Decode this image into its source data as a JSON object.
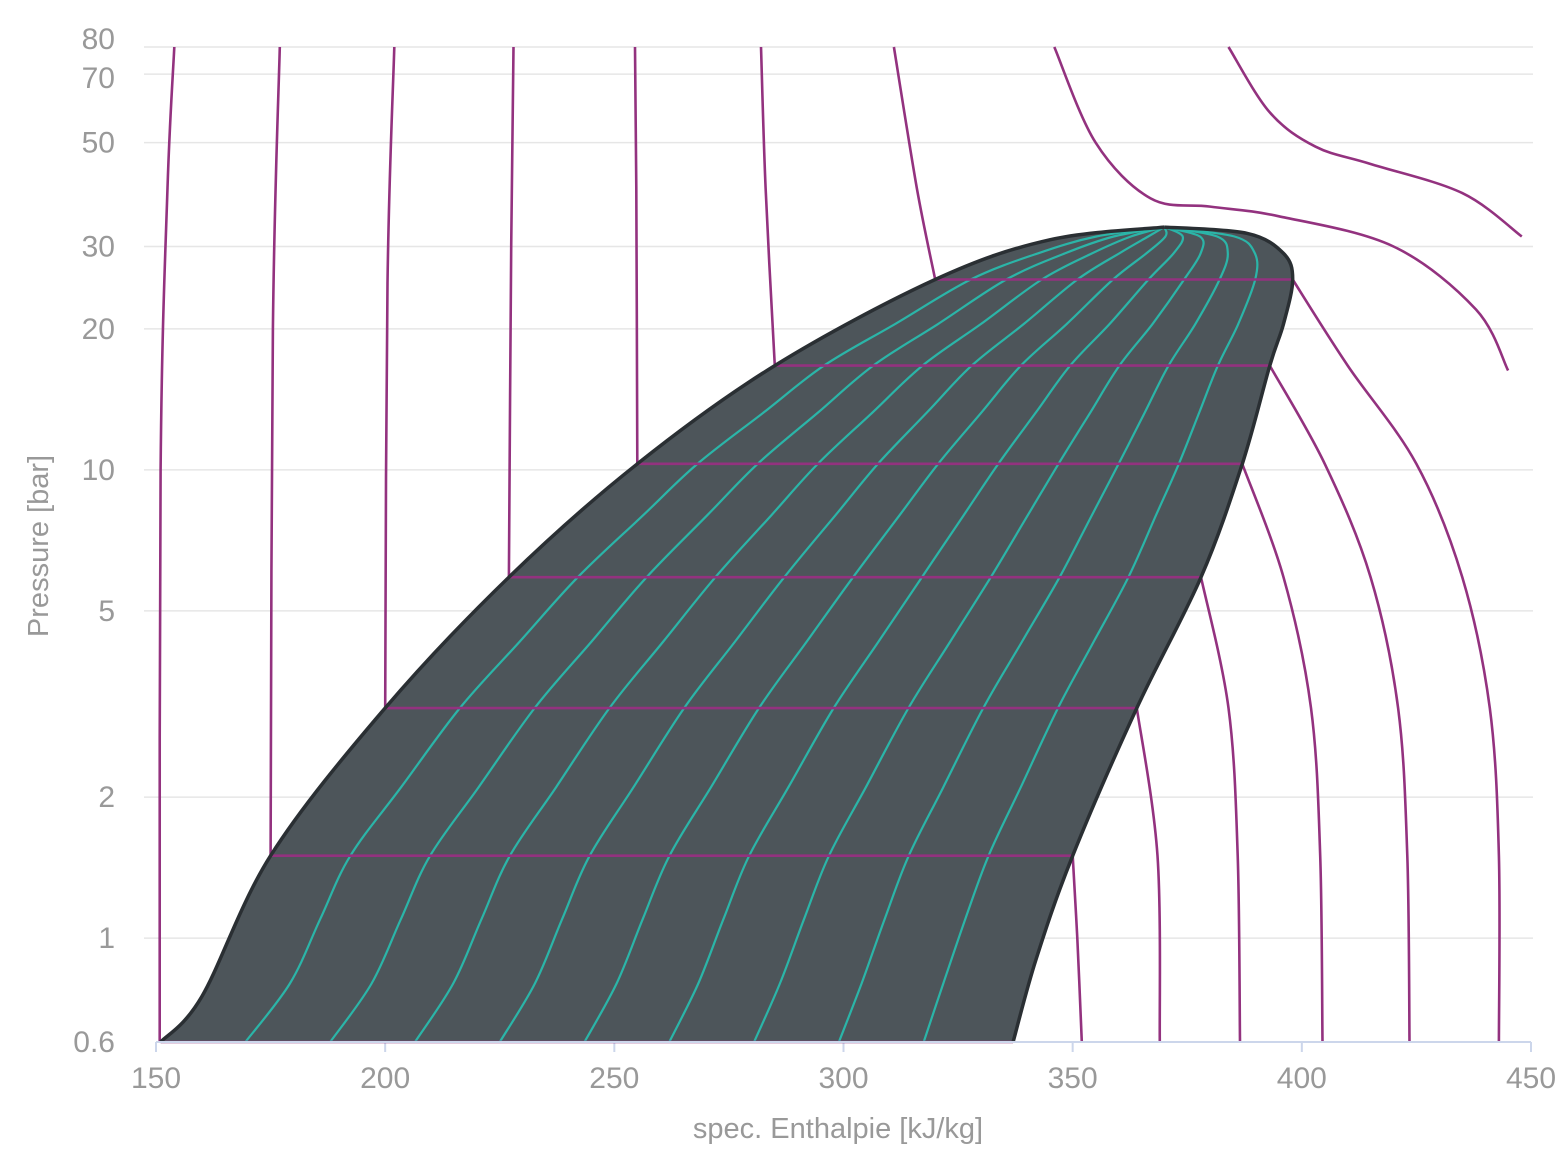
{
  "chart_data": {
    "type": "line",
    "title": "",
    "xlabel": "spec. Enthalpie [kJ/kg]",
    "ylabel": "Pressure [bar]",
    "xlim": [
      150,
      450
    ],
    "ylim": [
      0.6,
      80
    ],
    "y_scale": "log",
    "grid": true,
    "x_ticks": [
      150,
      200,
      250,
      300,
      350,
      400,
      450
    ],
    "y_ticks": [
      0.6,
      1,
      2,
      5,
      10,
      20,
      30,
      50,
      70,
      80
    ],
    "colors": {
      "two_phase_fill": "#4d555a",
      "dome_outline": "#2a2f33",
      "quality_lines": "#2bb5a8",
      "isotherms": "#93327f",
      "grid": "#e6e6e6",
      "axis": "#ccd6eb",
      "text": "#999999"
    },
    "saturation_dome": {
      "critical_point": {
        "h": 370,
        "p": 33
      },
      "liquid_line": [
        {
          "h": 151,
          "p": 0.6
        },
        {
          "h": 160,
          "p": 0.75
        },
        {
          "h": 175,
          "p": 1.5
        },
        {
          "h": 200,
          "p": 3.1
        },
        {
          "h": 227,
          "p": 5.9
        },
        {
          "h": 255,
          "p": 10.3
        },
        {
          "h": 285,
          "p": 16.7
        },
        {
          "h": 320,
          "p": 25.5
        },
        {
          "h": 345,
          "p": 31
        },
        {
          "h": 370,
          "p": 33
        }
      ],
      "vapor_line": [
        {
          "h": 370,
          "p": 33
        },
        {
          "h": 388,
          "p": 32
        },
        {
          "h": 396,
          "p": 29
        },
        {
          "h": 398,
          "p": 25.5
        },
        {
          "h": 396,
          "p": 20.5
        },
        {
          "h": 393,
          "p": 16.7
        },
        {
          "h": 387,
          "p": 10.3
        },
        {
          "h": 378,
          "p": 5.9
        },
        {
          "h": 364,
          "p": 3.1
        },
        {
          "h": 350,
          "p": 1.5
        },
        {
          "h": 342,
          "p": 0.9
        },
        {
          "h": 337,
          "p": 0.6
        }
      ]
    },
    "quality_lines": [
      {
        "h_at_0_6": 169.5
      },
      {
        "h_at_0_6": 188
      },
      {
        "h_at_0_6": 206.5
      },
      {
        "h_at_0_6": 225
      },
      {
        "h_at_0_6": 243.5
      },
      {
        "h_at_0_6": 262
      },
      {
        "h_at_0_6": 280.5
      },
      {
        "h_at_0_6": 299
      },
      {
        "h_at_0_6": 317.5
      }
    ],
    "isotherms": [
      {
        "points": [
          [
            150.8,
            0.6
          ],
          [
            151,
            10
          ],
          [
            152.5,
            40
          ],
          [
            154,
            80
          ]
        ]
      },
      {
        "points": [
          [
            175,
            1.5
          ],
          [
            175.5,
            20
          ],
          [
            177,
            80
          ]
        ]
      },
      {
        "points": [
          [
            200,
            3.1
          ],
          [
            200.5,
            25
          ],
          [
            202,
            80
          ]
        ]
      },
      {
        "points": [
          [
            227,
            5.9
          ],
          [
            227.5,
            30
          ],
          [
            228,
            80
          ]
        ]
      },
      {
        "points": [
          [
            255,
            10.3
          ],
          [
            254.8,
            40
          ],
          [
            254.5,
            80
          ]
        ]
      },
      {
        "points": [
          [
            285,
            16.7
          ],
          [
            283,
            40
          ],
          [
            282,
            80
          ]
        ]
      },
      {
        "points": [
          [
            320,
            25.5
          ],
          [
            316,
            40
          ],
          [
            311,
            80
          ]
        ]
      },
      {
        "points": [
          [
            352,
            0.6
          ],
          [
            351,
            1
          ],
          [
            350,
            1.5
          ]
        ]
      },
      {
        "points": [
          [
            369,
            0.6
          ],
          [
            368.5,
            1.5
          ],
          [
            364,
            3.1
          ]
        ]
      },
      {
        "points": [
          [
            386.5,
            0.6
          ],
          [
            386,
            1.5
          ],
          [
            384,
            3.1
          ],
          [
            378,
            5.9
          ]
        ]
      },
      {
        "points": [
          [
            404.5,
            0.6
          ],
          [
            404,
            1.5
          ],
          [
            402,
            3.1
          ],
          [
            396,
            5.9
          ],
          [
            387,
            10.3
          ]
        ]
      },
      {
        "points": [
          [
            423.5,
            0.6
          ],
          [
            423,
            1.5
          ],
          [
            421,
            3.1
          ],
          [
            415,
            5.9
          ],
          [
            405,
            10.3
          ],
          [
            393,
            16.7
          ]
        ]
      },
      {
        "points": [
          [
            443,
            0.6
          ],
          [
            443,
            1.5
          ],
          [
            441,
            3.1
          ],
          [
            435,
            5.9
          ],
          [
            425,
            10.3
          ],
          [
            410,
            16.7
          ],
          [
            398,
            25.5
          ]
        ]
      },
      {
        "points": [
          [
            445,
            16.3
          ],
          [
            438,
            22
          ],
          [
            420,
            30
          ],
          [
            395,
            34.8
          ],
          [
            380,
            36.5
          ],
          [
            367,
            38
          ],
          [
            355,
            50
          ],
          [
            346,
            80
          ]
        ]
      },
      {
        "points": [
          [
            448,
            31.5
          ],
          [
            435,
            39
          ],
          [
            415,
            45
          ],
          [
            403,
            49
          ],
          [
            393,
            58
          ],
          [
            384,
            80
          ]
        ]
      }
    ],
    "isobar_pressures": [
      0.6,
      1.5,
      3.1,
      5.9,
      10.3,
      16.7,
      25.5
    ]
  }
}
